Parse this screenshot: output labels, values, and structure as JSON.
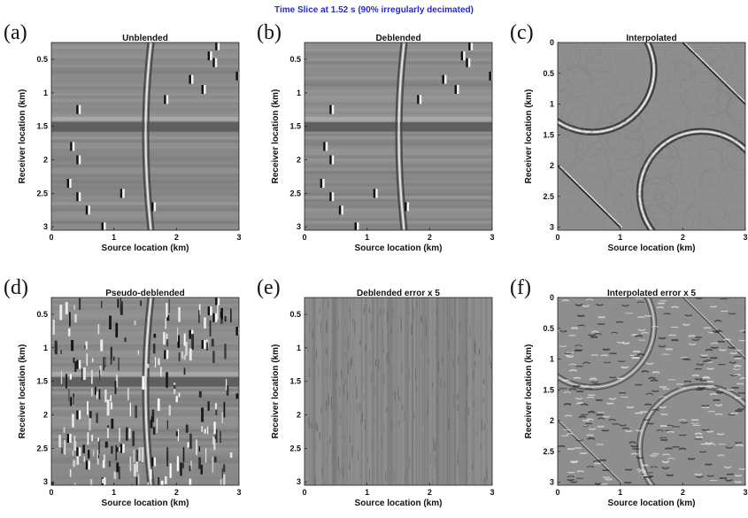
{
  "figure": {
    "title": "Time Slice at 1.52 s (90% irregularly decimated)",
    "title_color": "#1f2bdc"
  },
  "panels": [
    {
      "letter": "(a)",
      "title": "Unblended",
      "kind": "unblended",
      "xlabel": "Source location (km)",
      "ylabel": "Receiver location (km)",
      "xticks": [
        "0",
        "1",
        "2",
        "3"
      ],
      "yticks": [
        "0.5",
        "1",
        "1.5",
        "2",
        "2.5",
        "3"
      ]
    },
    {
      "letter": "(b)",
      "title": "Deblended",
      "kind": "deblended",
      "xlabel": "Source location (km)",
      "ylabel": "Receiver location (km)",
      "xticks": [
        "0",
        "1",
        "2",
        "3"
      ],
      "yticks": [
        "0.5",
        "1",
        "1.5",
        "2",
        "2.5",
        "3"
      ]
    },
    {
      "letter": "(c)",
      "title": "Interpolated",
      "kind": "interpolated",
      "xlabel": "Source location (km)",
      "ylabel": "Receiver location (km)",
      "xticks": [
        "0",
        "1",
        "2",
        "3"
      ],
      "yticks": [
        "0",
        "0.5",
        "1",
        "1.5",
        "2",
        "2.5",
        "3"
      ]
    },
    {
      "letter": "(d)",
      "title": "Pseudo-deblended",
      "kind": "pseudo",
      "xlabel": "Source location (km)",
      "ylabel": "Receiver location (km)",
      "xticks": [
        "0",
        "1",
        "2",
        "3"
      ],
      "yticks": [
        "0.5",
        "1",
        "1.5",
        "2",
        "2.5",
        "3"
      ]
    },
    {
      "letter": "(e)",
      "title": "Deblended error x 5",
      "kind": "deblend_err",
      "xlabel": "Source location (km)",
      "ylabel": "Receiver location (km)",
      "xticks": [
        "0",
        "1",
        "2",
        "3"
      ],
      "yticks": [
        "0.5",
        "1",
        "1.5",
        "2",
        "2.5",
        "3"
      ]
    },
    {
      "letter": "(f)",
      "title": "Interpolated error x 5",
      "kind": "interp_err",
      "xlabel": "Source location (km)",
      "ylabel": "Receiver location (km)",
      "xticks": [
        "0",
        "1",
        "2",
        "3"
      ],
      "yticks": [
        "0",
        "0.5",
        "1",
        "1.5",
        "2",
        "2.5",
        "3"
      ]
    }
  ]
}
